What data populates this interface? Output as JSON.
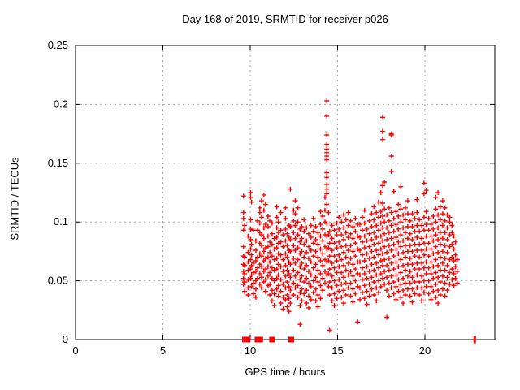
{
  "chart_data": {
    "type": "scatter",
    "title": "Day 168 of 2019, SRMTID for receiver p026",
    "xlabel": "GPS time / hours",
    "ylabel": "SRMTID / TECUs",
    "xlim": [
      0,
      24
    ],
    "ylim": [
      0,
      0.25
    ],
    "grid": "on",
    "legend": "none",
    "marker": "plus",
    "marker_color": "#ff0000",
    "grid_color": "#a8a8a8",
    "border_color": "#000000",
    "xticks": [
      {
        "v": 0,
        "label": "0"
      },
      {
        "v": 5,
        "label": "5"
      },
      {
        "v": 10,
        "label": "10"
      },
      {
        "v": 15,
        "label": "15"
      },
      {
        "v": 20,
        "label": "20"
      }
    ],
    "yticks": [
      {
        "v": 0,
        "label": "0"
      },
      {
        "v": 0.05,
        "label": "0.05"
      },
      {
        "v": 0.1,
        "label": "0.1"
      },
      {
        "v": 0.15,
        "label": "0.15"
      },
      {
        "v": 0.2,
        "label": "0.2"
      },
      {
        "v": 0.25,
        "label": "0.25"
      }
    ],
    "series_name": "SRMTID",
    "columns": [
      [
        9.62,
        [
          0.047,
          0.052,
          0.058,
          0.064,
          0.071,
          0.079,
          0.093,
          0.103,
          0.108,
          0.122
        ]
      ],
      [
        9.68,
        [
          0.041,
          0.049,
          0.056,
          0.063,
          0.07,
          0.097
        ]
      ],
      [
        9.88,
        [
          0.038,
          0.044,
          0.051,
          0.059,
          0.066,
          0.074,
          0.088
        ]
      ],
      [
        10.02,
        [
          0.052,
          0.06,
          0.068,
          0.077,
          0.085,
          0.094,
          0.102,
          0.121,
          0.125
        ]
      ],
      [
        10.08,
        [
          0.045,
          0.055,
          0.063,
          0.072,
          0.081,
          0.117
        ]
      ],
      [
        10.18,
        [
          0.039,
          0.048,
          0.057,
          0.065,
          0.093
        ]
      ],
      [
        10.32,
        [
          0.036,
          0.043,
          0.05,
          0.058,
          0.067,
          0.076,
          0.084
        ]
      ],
      [
        10.42,
        [
          0.052,
          0.061,
          0.07,
          0.093,
          0.101
        ]
      ],
      [
        10.55,
        [
          0.047,
          0.056,
          0.064,
          0.073,
          0.082,
          0.091,
          0.099,
          0.108,
          0.112
        ]
      ],
      [
        10.65,
        [
          0.044,
          0.053,
          0.062,
          0.071,
          0.08,
          0.089,
          0.104,
          0.118
        ]
      ],
      [
        10.78,
        [
          0.049,
          0.058,
          0.067,
          0.075,
          0.086,
          0.095,
          0.11,
          0.123
        ]
      ],
      [
        10.88,
        [
          0.041,
          0.051,
          0.06,
          0.069,
          0.078,
          0.098,
          0.115
        ]
      ],
      [
        11.02,
        [
          0.046,
          0.054,
          0.062,
          0.07,
          0.079,
          0.088,
          0.096,
          0.105
        ]
      ],
      [
        11.12,
        [
          0.038,
          0.047,
          0.057,
          0.066,
          0.074,
          0.083,
          0.101
        ]
      ],
      [
        11.25,
        [
          0.033,
          0.042,
          0.052,
          0.061,
          0.071,
          0.081,
          0.09,
          0.099
        ]
      ],
      [
        11.38,
        [
          0.029,
          0.039,
          0.05,
          0.059,
          0.068,
          0.077,
          0.086
        ]
      ],
      [
        11.52,
        [
          0.043,
          0.052,
          0.06,
          0.069,
          0.078,
          0.087,
          0.095,
          0.104,
          0.113
        ]
      ],
      [
        11.62,
        [
          0.037,
          0.046,
          0.055,
          0.064,
          0.073,
          0.082,
          0.091,
          0.1
        ]
      ],
      [
        11.75,
        [
          0.031,
          0.041,
          0.051,
          0.062,
          0.072,
          0.083,
          0.093,
          0.108
        ]
      ],
      [
        11.88,
        [
          0.026,
          0.036,
          0.047,
          0.058,
          0.068,
          0.079,
          0.089
        ]
      ],
      [
        12.02,
        [
          0.034,
          0.044,
          0.054,
          0.063,
          0.073,
          0.084,
          0.094,
          0.103,
          0.112
        ]
      ],
      [
        12.12,
        [
          0.028,
          0.038,
          0.049,
          0.059,
          0.07,
          0.08,
          0.09
        ]
      ],
      [
        12.22,
        [
          0.024,
          0.035,
          0.045,
          0.056,
          0.066,
          0.076,
          0.087,
          0.097
        ]
      ],
      [
        12.3,
        [
          0.031,
          0.042,
          0.053,
          0.064,
          0.075,
          0.085,
          0.096,
          0.128
        ]
      ],
      [
        12.48,
        [
          0.038,
          0.048,
          0.059,
          0.069,
          0.08,
          0.091,
          0.101,
          0.11
        ]
      ],
      [
        12.58,
        [
          0.044,
          0.054,
          0.065,
          0.076,
          0.086,
          0.097,
          0.107,
          0.118
        ]
      ],
      [
        12.72,
        [
          0.036,
          0.046,
          0.057,
          0.068,
          0.078,
          0.089,
          0.1,
          0.112
        ]
      ],
      [
        12.85,
        [
          0.013,
          0.029,
          0.04,
          0.051,
          0.062,
          0.073,
          0.083,
          0.094
        ]
      ],
      [
        12.95,
        [
          0.033,
          0.043,
          0.054,
          0.065,
          0.075,
          0.086,
          0.096
        ]
      ],
      [
        13.08,
        [
          0.039,
          0.049,
          0.06,
          0.07,
          0.081,
          0.092,
          0.102
        ]
      ],
      [
        13.22,
        [
          0.031,
          0.042,
          0.052,
          0.063,
          0.074,
          0.084,
          0.095
        ]
      ],
      [
        13.35,
        [
          0.027,
          0.037,
          0.048,
          0.058,
          0.069,
          0.079,
          0.09
        ]
      ],
      [
        13.48,
        [
          0.034,
          0.045,
          0.055,
          0.066,
          0.076,
          0.087,
          0.097
        ]
      ],
      [
        13.62,
        [
          0.04,
          0.05,
          0.061,
          0.071,
          0.082,
          0.092,
          0.103
        ]
      ],
      [
        13.75,
        [
          0.033,
          0.043,
          0.053,
          0.064,
          0.075,
          0.085,
          0.096
        ]
      ],
      [
        13.88,
        [
          0.028,
          0.038,
          0.049,
          0.059,
          0.07,
          0.081,
          0.091
        ]
      ],
      [
        14.02,
        [
          0.035,
          0.046,
          0.056,
          0.067,
          0.077,
          0.088,
          0.098,
          0.109
        ]
      ],
      [
        14.15,
        [
          0.042,
          0.052,
          0.063,
          0.073,
          0.084,
          0.094,
          0.105
        ]
      ],
      [
        14.28,
        [
          0.048,
          0.058,
          0.068,
          0.079,
          0.089,
          0.1,
          0.11,
          0.121
        ]
      ],
      [
        14.38,
        [
          0.055,
          0.066,
          0.077,
          0.088,
          0.099,
          0.115,
          0.124,
          0.128,
          0.132,
          0.138,
          0.142,
          0.153,
          0.156,
          0.159,
          0.162,
          0.166,
          0.174,
          0.19,
          0.203
        ]
      ],
      [
        14.48,
        [
          0.045,
          0.056,
          0.067,
          0.078,
          0.089,
          0.108
        ]
      ],
      [
        14.55,
        [
          0.008,
          0.038,
          0.049,
          0.06,
          0.071,
          0.082,
          0.092
        ]
      ],
      [
        14.68,
        [
          0.033,
          0.044,
          0.054,
          0.065,
          0.076,
          0.086,
          0.097
        ]
      ],
      [
        14.82,
        [
          0.029,
          0.039,
          0.05,
          0.061,
          0.071,
          0.082,
          0.093
        ]
      ],
      [
        14.95,
        [
          0.035,
          0.046,
          0.057,
          0.067,
          0.078,
          0.089,
          0.099
        ]
      ],
      [
        15.08,
        [
          0.041,
          0.051,
          0.062,
          0.072,
          0.083,
          0.094,
          0.104
        ]
      ],
      [
        15.22,
        [
          0.036,
          0.047,
          0.057,
          0.068,
          0.079,
          0.089,
          0.1
        ]
      ],
      [
        15.35,
        [
          0.031,
          0.042,
          0.053,
          0.063,
          0.074,
          0.085,
          0.095,
          0.106
        ]
      ],
      [
        15.48,
        [
          0.038,
          0.048,
          0.059,
          0.07,
          0.08,
          0.091,
          0.102
        ]
      ],
      [
        15.62,
        [
          0.044,
          0.055,
          0.065,
          0.076,
          0.087,
          0.097,
          0.108
        ]
      ],
      [
        15.75,
        [
          0.037,
          0.048,
          0.058,
          0.069,
          0.08,
          0.09,
          0.101
        ]
      ],
      [
        15.88,
        [
          0.032,
          0.043,
          0.054,
          0.064,
          0.075,
          0.086,
          0.096
        ]
      ],
      [
        16.02,
        [
          0.039,
          0.05,
          0.06,
          0.071,
          0.082,
          0.092,
          0.103
        ]
      ],
      [
        16.15,
        [
          0.015,
          0.045,
          0.056,
          0.066,
          0.077,
          0.088,
          0.098
        ]
      ],
      [
        16.28,
        [
          0.034,
          0.044,
          0.055,
          0.066,
          0.076,
          0.087,
          0.098
        ]
      ],
      [
        16.42,
        [
          0.04,
          0.051,
          0.061,
          0.072,
          0.083,
          0.093,
          0.104
        ]
      ],
      [
        16.55,
        [
          0.035,
          0.046,
          0.056,
          0.067,
          0.078,
          0.088,
          0.099,
          0.11
        ]
      ],
      [
        16.68,
        [
          0.03,
          0.041,
          0.052,
          0.062,
          0.073,
          0.084,
          0.094
        ]
      ],
      [
        16.82,
        [
          0.037,
          0.047,
          0.058,
          0.069,
          0.079,
          0.09,
          0.101
        ]
      ],
      [
        16.95,
        [
          0.043,
          0.053,
          0.064,
          0.075,
          0.085,
          0.096,
          0.107
        ]
      ],
      [
        17.08,
        [
          0.038,
          0.049,
          0.059,
          0.07,
          0.081,
          0.091,
          0.102,
          0.113
        ]
      ],
      [
        17.22,
        [
          0.033,
          0.044,
          0.055,
          0.065,
          0.076,
          0.087,
          0.097,
          0.108
        ]
      ],
      [
        17.35,
        [
          0.04,
          0.05,
          0.061,
          0.072,
          0.082,
          0.093,
          0.104,
          0.117
        ]
      ],
      [
        17.48,
        [
          0.045,
          0.056,
          0.067,
          0.077,
          0.088,
          0.099,
          0.109,
          0.125
        ]
      ],
      [
        17.58,
        [
          0.052,
          0.063,
          0.073,
          0.084,
          0.095,
          0.105,
          0.116,
          0.131,
          0.17,
          0.177,
          0.189
        ]
      ],
      [
        17.68,
        [
          0.047,
          0.058,
          0.068,
          0.079,
          0.09,
          0.1,
          0.111,
          0.134
        ]
      ],
      [
        17.82,
        [
          0.019,
          0.042,
          0.053,
          0.063,
          0.074,
          0.085,
          0.095,
          0.106
        ]
      ],
      [
        17.95,
        [
          0.037,
          0.048,
          0.059,
          0.069,
          0.08,
          0.091,
          0.101,
          0.112
        ]
      ],
      [
        18.08,
        [
          0.044,
          0.054,
          0.065,
          0.076,
          0.086,
          0.097,
          0.108,
          0.143,
          0.156,
          0.174,
          0.175
        ]
      ],
      [
        18.22,
        [
          0.039,
          0.049,
          0.06,
          0.071,
          0.081,
          0.092,
          0.103,
          0.126
        ]
      ],
      [
        18.35,
        [
          0.034,
          0.045,
          0.055,
          0.066,
          0.077,
          0.087,
          0.098,
          0.109
        ]
      ],
      [
        18.48,
        [
          0.041,
          0.051,
          0.062,
          0.073,
          0.083,
          0.094,
          0.105,
          0.115
        ]
      ],
      [
        18.62,
        [
          0.036,
          0.047,
          0.057,
          0.068,
          0.079,
          0.089,
          0.1,
          0.111,
          0.13
        ]
      ],
      [
        18.75,
        [
          0.031,
          0.042,
          0.052,
          0.063,
          0.074,
          0.084,
          0.095,
          0.106
        ]
      ],
      [
        18.88,
        [
          0.038,
          0.048,
          0.059,
          0.07,
          0.08,
          0.091,
          0.102,
          0.112
        ]
      ],
      [
        19.02,
        [
          0.043,
          0.054,
          0.064,
          0.075,
          0.086,
          0.096,
          0.107,
          0.118
        ]
      ],
      [
        19.15,
        [
          0.037,
          0.048,
          0.058,
          0.069,
          0.08,
          0.09,
          0.101
        ]
      ],
      [
        19.28,
        [
          0.032,
          0.043,
          0.053,
          0.064,
          0.075,
          0.085,
          0.096,
          0.107
        ]
      ],
      [
        19.42,
        [
          0.039,
          0.049,
          0.06,
          0.071,
          0.081,
          0.092,
          0.103
        ]
      ],
      [
        19.55,
        [
          0.044,
          0.055,
          0.065,
          0.076,
          0.087,
          0.097,
          0.108,
          0.119
        ]
      ],
      [
        19.68,
        [
          0.038,
          0.049,
          0.06,
          0.07,
          0.081,
          0.092,
          0.102
        ]
      ],
      [
        19.82,
        [
          0.033,
          0.044,
          0.054,
          0.065,
          0.076,
          0.086,
          0.097
        ]
      ],
      [
        19.95,
        [
          0.04,
          0.05,
          0.061,
          0.072,
          0.082,
          0.093,
          0.104,
          0.124,
          0.133
        ]
      ],
      [
        20.08,
        [
          0.045,
          0.056,
          0.066,
          0.077,
          0.088,
          0.098,
          0.109,
          0.127
        ]
      ],
      [
        20.22,
        [
          0.039,
          0.05,
          0.061,
          0.071,
          0.082,
          0.093,
          0.103
        ]
      ],
      [
        20.35,
        [
          0.034,
          0.045,
          0.056,
          0.066,
          0.077,
          0.088,
          0.098
        ]
      ],
      [
        20.48,
        [
          0.041,
          0.052,
          0.062,
          0.073,
          0.084,
          0.094,
          0.105
        ]
      ],
      [
        20.62,
        [
          0.036,
          0.047,
          0.057,
          0.068,
          0.079,
          0.089,
          0.1,
          0.111,
          0.121
        ]
      ],
      [
        20.75,
        [
          0.031,
          0.042,
          0.053,
          0.063,
          0.074,
          0.085,
          0.095,
          0.106,
          0.125
        ]
      ],
      [
        20.88,
        [
          0.038,
          0.049,
          0.059,
          0.07,
          0.081,
          0.091,
          0.102,
          0.113
        ]
      ],
      [
        21.02,
        [
          0.043,
          0.054,
          0.065,
          0.075,
          0.086,
          0.097,
          0.107,
          0.118
        ]
      ],
      [
        21.15,
        [
          0.037,
          0.048,
          0.059,
          0.069,
          0.08,
          0.091,
          0.101,
          0.112
        ]
      ],
      [
        21.28,
        [
          0.042,
          0.053,
          0.063,
          0.074,
          0.085,
          0.095,
          0.106
        ]
      ],
      [
        21.42,
        [
          0.047,
          0.057,
          0.068,
          0.079,
          0.089,
          0.1,
          0.104
        ]
      ],
      [
        21.55,
        [
          0.051,
          0.06,
          0.07,
          0.081,
          0.091,
          0.097
        ]
      ],
      [
        21.65,
        [
          0.046,
          0.056,
          0.067,
          0.077,
          0.088
        ]
      ],
      [
        21.75,
        [
          0.052,
          0.062,
          0.072,
          0.083
        ]
      ],
      [
        21.85,
        [
          0.048,
          0.058,
          0.068
        ]
      ]
    ],
    "zero_value_markers": {
      "style": "filled-square",
      "hours": [
        9.7,
        9.85,
        10.42,
        10.57,
        11.25,
        12.35
      ]
    },
    "zero_value_tick": {
      "style": "thin-bar",
      "hour": 22.85
    }
  }
}
